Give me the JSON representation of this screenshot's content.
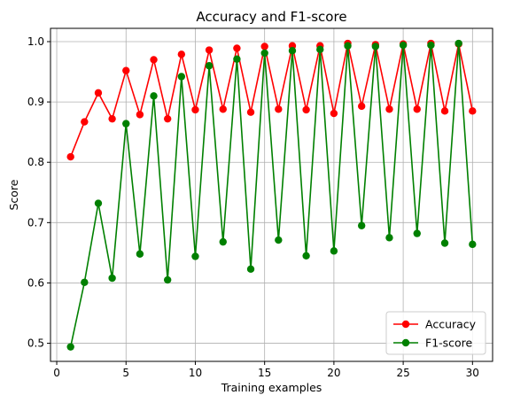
{
  "chart_data": {
    "type": "line",
    "title": "Accuracy and F1-score",
    "xlabel": "Training examples",
    "ylabel": "Score",
    "xlim": [
      -0.45,
      31.45
    ],
    "ylim": [
      0.47,
      1.022
    ],
    "xticks": [
      0,
      5,
      10,
      15,
      20,
      25,
      30
    ],
    "yticks": [
      0.5,
      0.6,
      0.7,
      0.8,
      0.9,
      1.0
    ],
    "xtick_labels": [
      "0",
      "5",
      "10",
      "15",
      "20",
      "25",
      "30"
    ],
    "ytick_labels": [
      "0.5",
      "0.6",
      "0.7",
      "0.8",
      "0.9",
      "1.0"
    ],
    "grid": true,
    "legend_position": "lower-right",
    "x": [
      1,
      2,
      3,
      4,
      5,
      6,
      7,
      8,
      9,
      10,
      11,
      12,
      13,
      14,
      15,
      16,
      17,
      18,
      19,
      20,
      21,
      22,
      23,
      24,
      25,
      26,
      27,
      28,
      29,
      30
    ],
    "series": [
      {
        "name": "Accuracy",
        "color": "#ff0000",
        "marker": "circle",
        "values": [
          0.809,
          0.867,
          0.915,
          0.872,
          0.952,
          0.879,
          0.97,
          0.872,
          0.979,
          0.887,
          0.986,
          0.888,
          0.989,
          0.883,
          0.992,
          0.888,
          0.993,
          0.887,
          0.993,
          0.881,
          0.997,
          0.893,
          0.995,
          0.888,
          0.996,
          0.888,
          0.997,
          0.885,
          0.996,
          0.885
        ]
      },
      {
        "name": "F1-score",
        "color": "#008000",
        "marker": "circle",
        "values": [
          0.494,
          0.601,
          0.732,
          0.608,
          0.864,
          0.648,
          0.91,
          0.605,
          0.942,
          0.644,
          0.96,
          0.668,
          0.971,
          0.623,
          0.981,
          0.671,
          0.985,
          0.645,
          0.987,
          0.653,
          0.993,
          0.695,
          0.992,
          0.675,
          0.994,
          0.682,
          0.994,
          0.666,
          0.997,
          0.664
        ]
      }
    ]
  }
}
